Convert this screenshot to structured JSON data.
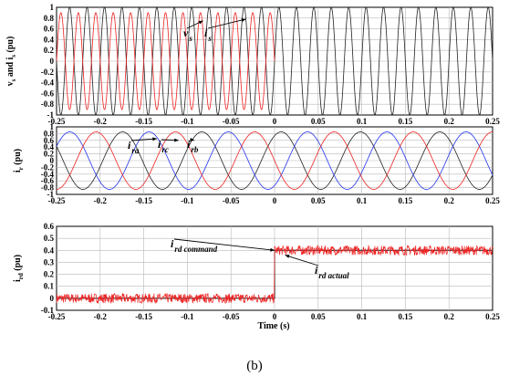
{
  "figure_caption": "(b)",
  "chart_data": [
    {
      "type": "line",
      "ylabel": "v_s and i_s (pu)",
      "xlim": [
        -0.25,
        0.25
      ],
      "ylim": [
        -1,
        1
      ],
      "x_ticks": [
        "-0.25",
        "-0.2",
        "-0.15",
        "-0.1",
        "-0.05",
        "0",
        "0.05",
        "0.1",
        "0.15",
        "0.2",
        "0.25"
      ],
      "y_ticks": [
        "1",
        "0.8",
        "0.6",
        "0.4",
        "0.2",
        "0",
        "-0.2",
        "-0.4",
        "-0.6",
        "-0.8",
        "-1"
      ],
      "series": [
        {
          "name": "v_s",
          "color": "#222222",
          "form": "sinusoid",
          "amplitude": 1.0,
          "frequency_hz": 50,
          "phase_deg": 0
        },
        {
          "name": "i_s",
          "color": "#ee2222",
          "form": "sinusoid",
          "amplitude": 0.9,
          "frequency_hz": 50,
          "phase_deg": 180,
          "x_end": 0
        }
      ],
      "annotations": [
        {
          "main": "v",
          "sub": "s",
          "points_to_x": -0.082,
          "points_to_y": 0.75
        },
        {
          "main": "i",
          "sub": "s",
          "points_to_x": -0.033,
          "points_to_y": 0.78
        }
      ]
    },
    {
      "type": "line",
      "ylabel": "i_r (pu)",
      "xlim": [
        -0.25,
        0.25
      ],
      "ylim": [
        -1,
        1
      ],
      "x_ticks": [
        "-0.25",
        "-0.2",
        "-0.15",
        "-0.1",
        "-0.05",
        "0",
        "0.05",
        "0.1",
        "0.15",
        "0.2",
        "0.25"
      ],
      "y_ticks": [
        "1",
        "0.8",
        "0.6",
        "0.4",
        "0.2",
        "0",
        "-0.2",
        "-0.4",
        "-0.6",
        "-0.8",
        "-1"
      ],
      "series": [
        {
          "name": "i_ra",
          "color": "#222222",
          "form": "sinusoid",
          "amplitude": 0.85,
          "frequency_hz": 11,
          "phase_deg": 60
        },
        {
          "name": "i_rb",
          "color": "#2233ee",
          "form": "sinusoid",
          "amplitude": 0.85,
          "frequency_hz": 11,
          "phase_deg": -60
        },
        {
          "name": "i_rc",
          "color": "#ee2222",
          "form": "sinusoid",
          "amplitude": 0.85,
          "frequency_hz": 11,
          "phase_deg": 180
        }
      ],
      "annotations": [
        {
          "main": "i",
          "sub": "ra",
          "points_to_x": -0.135,
          "points_to_y": 0.65
        },
        {
          "main": "i",
          "sub": "rc",
          "points_to_x": -0.11,
          "points_to_y": 0.6
        },
        {
          "main": "i",
          "sub": "rb",
          "points_to_x": -0.092,
          "points_to_y": 0.6
        }
      ]
    },
    {
      "type": "line",
      "ylabel": "i_rd (pu)",
      "xlabel": "Time (s)",
      "xlim": [
        -0.25,
        0.25
      ],
      "ylim": [
        -0.1,
        0.6
      ],
      "x_ticks": [
        "-0.25",
        "-0.2",
        "-0.15",
        "-0.1",
        "-0.05",
        "0",
        "0.05",
        "0.1",
        "0.15",
        "0.2",
        "0.25"
      ],
      "y_ticks": [
        "0.6",
        "0.5",
        "0.4",
        "0.3",
        "0.2",
        "0.1",
        "0",
        "-0.1"
      ],
      "series": [
        {
          "name": "i_rd command",
          "color": "#111111",
          "form": "step",
          "points": [
            [
              -0.25,
              0.0
            ],
            [
              0.0,
              0.0
            ],
            [
              0.0,
              0.4
            ],
            [
              0.25,
              0.4
            ]
          ]
        },
        {
          "name": "i_rd actual",
          "color": "#ee2222",
          "form": "noisy-step",
          "before": 0.0,
          "after": 0.4,
          "noise_pu": 0.04
        }
      ],
      "annotations": [
        {
          "main": "i",
          "sub": "rd command",
          "points_to_x": 0.0,
          "points_to_y": 0.4
        },
        {
          "main": "i",
          "sub": "rd actual",
          "points_to_x": 0.012,
          "points_to_y": 0.36
        }
      ]
    }
  ]
}
